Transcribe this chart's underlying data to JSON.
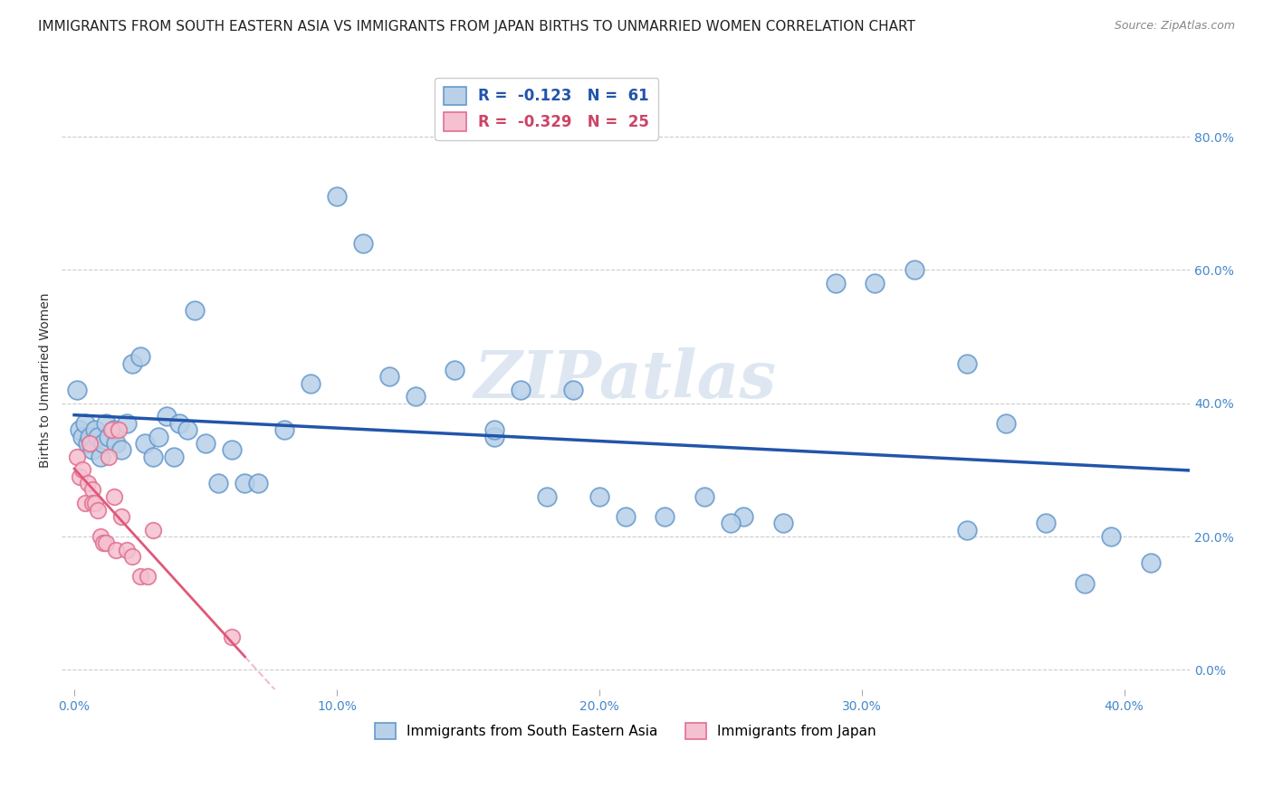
{
  "title": "IMMIGRANTS FROM SOUTH EASTERN ASIA VS IMMIGRANTS FROM JAPAN BIRTHS TO UNMARRIED WOMEN CORRELATION CHART",
  "source": "Source: ZipAtlas.com",
  "xlabel_ticks": [
    "0.0%",
    "10.0%",
    "20.0%",
    "30.0%",
    "40.0%"
  ],
  "xlabel_tick_vals": [
    0.0,
    0.1,
    0.2,
    0.3,
    0.4
  ],
  "ylabel_ticks": [
    "0.0%",
    "20.0%",
    "40.0%",
    "60.0%",
    "80.0%"
  ],
  "ylabel_tick_vals": [
    0.0,
    0.2,
    0.4,
    0.6,
    0.8
  ],
  "ylabel": "Births to Unmarried Women",
  "xlim": [
    -0.005,
    0.425
  ],
  "ylim": [
    -0.03,
    0.9
  ],
  "blue_color": "#b8d0e8",
  "blue_edge_color": "#6699cc",
  "pink_color": "#f5c0d0",
  "pink_edge_color": "#e07090",
  "blue_line_color": "#2255aa",
  "pink_line_color": "#e05878",
  "watermark": "ZIPatlas",
  "legend_r1": "-0.123",
  "legend_n1": "61",
  "legend_r2": "-0.329",
  "legend_n2": "25",
  "legend_label1": "Immigrants from South Eastern Asia",
  "legend_label2": "Immigrants from Japan",
  "blue_x": [
    0.001,
    0.002,
    0.003,
    0.004,
    0.005,
    0.006,
    0.007,
    0.008,
    0.009,
    0.01,
    0.011,
    0.012,
    0.013,
    0.015,
    0.016,
    0.018,
    0.02,
    0.022,
    0.025,
    0.027,
    0.03,
    0.032,
    0.035,
    0.038,
    0.04,
    0.043,
    0.046,
    0.05,
    0.055,
    0.06,
    0.065,
    0.07,
    0.08,
    0.09,
    0.1,
    0.11,
    0.12,
    0.13,
    0.145,
    0.16,
    0.17,
    0.18,
    0.19,
    0.2,
    0.21,
    0.225,
    0.24,
    0.255,
    0.27,
    0.29,
    0.305,
    0.32,
    0.34,
    0.355,
    0.37,
    0.385,
    0.395,
    0.41,
    0.34,
    0.25,
    0.16
  ],
  "blue_y": [
    0.42,
    0.36,
    0.35,
    0.37,
    0.34,
    0.35,
    0.33,
    0.36,
    0.35,
    0.32,
    0.34,
    0.37,
    0.35,
    0.36,
    0.34,
    0.33,
    0.37,
    0.46,
    0.47,
    0.34,
    0.32,
    0.35,
    0.38,
    0.32,
    0.37,
    0.36,
    0.54,
    0.34,
    0.28,
    0.33,
    0.28,
    0.28,
    0.36,
    0.43,
    0.71,
    0.64,
    0.44,
    0.41,
    0.45,
    0.35,
    0.42,
    0.26,
    0.42,
    0.26,
    0.23,
    0.23,
    0.26,
    0.23,
    0.22,
    0.58,
    0.58,
    0.6,
    0.46,
    0.37,
    0.22,
    0.13,
    0.2,
    0.16,
    0.21,
    0.22,
    0.36
  ],
  "pink_x": [
    0.001,
    0.002,
    0.003,
    0.004,
    0.005,
    0.006,
    0.007,
    0.007,
    0.008,
    0.009,
    0.01,
    0.011,
    0.012,
    0.013,
    0.014,
    0.015,
    0.016,
    0.017,
    0.018,
    0.02,
    0.022,
    0.025,
    0.028,
    0.03,
    0.06
  ],
  "pink_y": [
    0.32,
    0.29,
    0.3,
    0.25,
    0.28,
    0.34,
    0.27,
    0.25,
    0.25,
    0.24,
    0.2,
    0.19,
    0.19,
    0.32,
    0.36,
    0.26,
    0.18,
    0.36,
    0.23,
    0.18,
    0.17,
    0.14,
    0.14,
    0.21,
    0.05
  ],
  "grid_color": "#cccccc",
  "background_color": "#ffffff",
  "title_fontsize": 11,
  "axis_label_fontsize": 10,
  "tick_fontsize": 10,
  "watermark_fontsize": 52,
  "watermark_color": "#c8d8e8",
  "watermark_alpha": 0.6,
  "pink_line_solid_end": 0.065,
  "pink_line_dashed_end": 0.3
}
